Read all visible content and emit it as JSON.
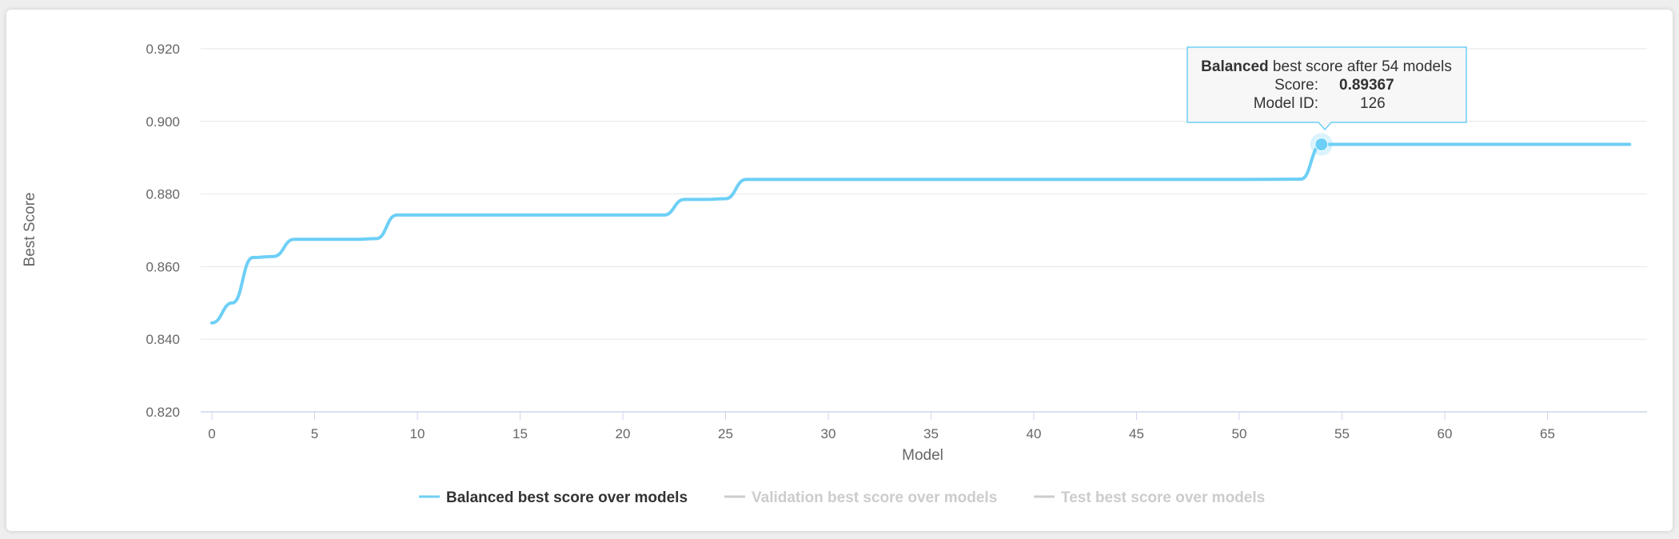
{
  "chart_data": {
    "type": "line",
    "title": "",
    "xlabel": "Model",
    "ylabel": "Best Score",
    "xlim": [
      0,
      69
    ],
    "ylim": [
      0.82,
      0.92
    ],
    "x_ticks": [
      "0",
      "5",
      "10",
      "15",
      "20",
      "25",
      "30",
      "35",
      "40",
      "45",
      "50",
      "55",
      "60",
      "65"
    ],
    "y_ticks": [
      "0.820",
      "0.840",
      "0.860",
      "0.880",
      "0.900",
      "0.920"
    ],
    "grid": true,
    "legend_placement": "bottom",
    "series": [
      {
        "name": "Balanced best score over models",
        "color": "#6dcff6",
        "visible": true,
        "points": [
          [
            0,
            0.8445
          ],
          [
            1,
            0.85
          ],
          [
            2,
            0.8625
          ],
          [
            3,
            0.8628
          ],
          [
            4,
            0.8675
          ],
          [
            5,
            0.8675
          ],
          [
            6,
            0.8675
          ],
          [
            7,
            0.8675
          ],
          [
            8,
            0.8677
          ],
          [
            9,
            0.8742
          ],
          [
            10,
            0.8742
          ],
          [
            15,
            0.8742
          ],
          [
            20,
            0.8742
          ],
          [
            22,
            0.8742
          ],
          [
            23,
            0.8785
          ],
          [
            24,
            0.8785
          ],
          [
            25,
            0.8787
          ],
          [
            26,
            0.884
          ],
          [
            30,
            0.884
          ],
          [
            35,
            0.884
          ],
          [
            40,
            0.884
          ],
          [
            45,
            0.884
          ],
          [
            50,
            0.884
          ],
          [
            53,
            0.8841
          ],
          [
            54,
            0.89367
          ],
          [
            55,
            0.89367
          ],
          [
            60,
            0.89367
          ],
          [
            65,
            0.89367
          ],
          [
            69,
            0.89367
          ]
        ]
      },
      {
        "name": "Validation best score over models",
        "color": "#cccccc",
        "visible": false,
        "points": []
      },
      {
        "name": "Test best score over models",
        "color": "#cccccc",
        "visible": false,
        "points": []
      }
    ],
    "highlight": {
      "x": 54,
      "y": 0.89367
    },
    "tooltip": {
      "title_bold": "Balanced",
      "title_rest": " best score after 54 models",
      "score_label": "Score:",
      "score_value": "0.89367",
      "model_id_label": "Model ID:",
      "model_id_value": "126"
    }
  }
}
